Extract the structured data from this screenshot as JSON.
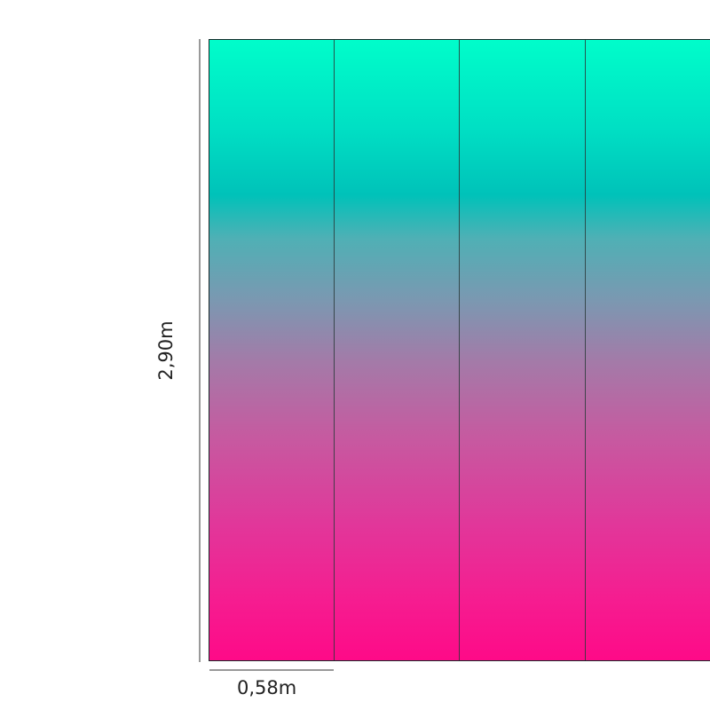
{
  "dimensions": {
    "height_label": "2,90m",
    "width_label": "0,58m"
  },
  "panel": {
    "strips_visible": 4,
    "gradient_colors": [
      "#00fdca",
      "#00c2b9",
      "#7b98b1",
      "#c65aa0",
      "#fe0a88"
    ]
  }
}
